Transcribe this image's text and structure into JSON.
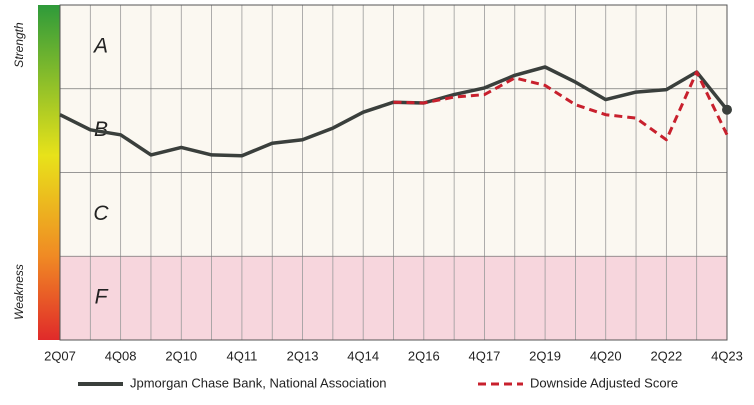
{
  "chart_data": {
    "type": "line",
    "y_label_top": "Strength",
    "y_label_bottom": "Weakness",
    "bands": [
      {
        "label": "F",
        "color": "#f7d6dd",
        "label_color": "#d9263f"
      },
      {
        "label": "C",
        "color": "#fbf8f1",
        "label_color": "#333333"
      },
      {
        "label": "B",
        "color": "#fbf8f1",
        "label_color": "#333333"
      },
      {
        "label": "A",
        "color": "#fbf8f1",
        "label_color": "#333333"
      }
    ],
    "categories": [
      "2Q07",
      null,
      "4Q08",
      null,
      "2Q10",
      null,
      "4Q11",
      null,
      "2Q13",
      null,
      "4Q14",
      null,
      "2Q16",
      null,
      "4Q17",
      null,
      "2Q19",
      null,
      "4Q20",
      null,
      "2Q22",
      null,
      "4Q23"
    ],
    "series": [
      {
        "name": "Jpmorgan Chase Bank, National Association",
        "color": "#3a3f3c",
        "dash": false,
        "values": [
          2.69,
          2.51,
          2.45,
          2.21,
          2.3,
          2.21,
          2.2,
          2.35,
          2.39,
          2.53,
          2.72,
          2.84,
          2.83,
          2.93,
          3.01,
          3.16,
          3.26,
          3.08,
          2.87,
          2.96,
          2.99,
          3.2,
          2.75
        ]
      },
      {
        "name": "Downside Adjusted Score",
        "color": "#c8202d",
        "dash": true,
        "values": [
          null,
          null,
          null,
          null,
          null,
          null,
          null,
          null,
          null,
          null,
          null,
          2.84,
          2.83,
          2.9,
          2.93,
          3.13,
          3.04,
          2.81,
          2.69,
          2.65,
          2.39,
          3.2,
          2.45
        ]
      }
    ],
    "ylim": [
      0,
      4
    ],
    "yticks": [
      0,
      1,
      2,
      3,
      4
    ],
    "grid": true
  }
}
